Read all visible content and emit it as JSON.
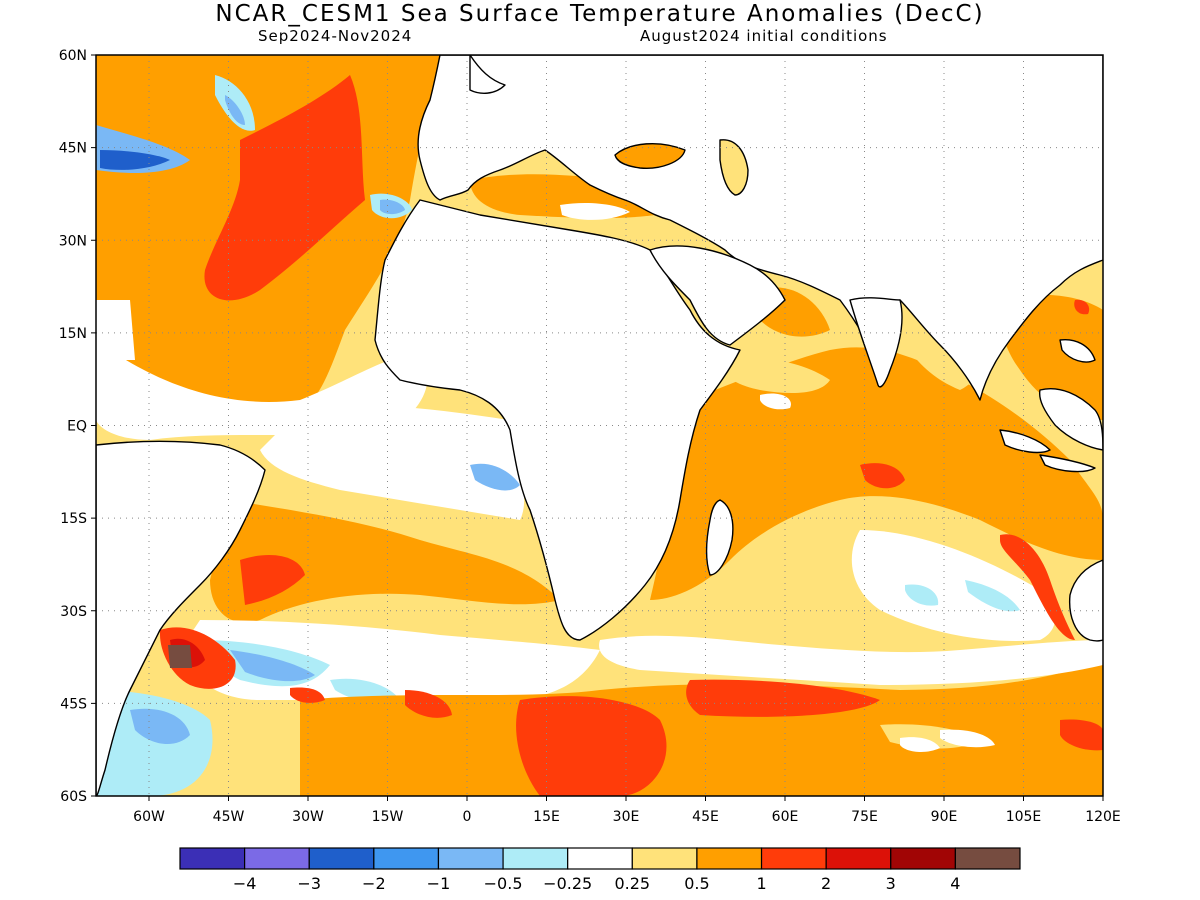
{
  "title": "NCAR_CESM1 Sea Surface Temperature Anomalies (DecC)",
  "subtitle_left": "Sep2024-Nov2024",
  "subtitle_right": "August2024 initial conditions",
  "map": {
    "lon_range": [
      -70,
      120
    ],
    "lat_range": [
      -60,
      60
    ],
    "lat_ticks": [
      {
        "value": 60,
        "label": "60N"
      },
      {
        "value": 45,
        "label": "45N"
      },
      {
        "value": 30,
        "label": "30N"
      },
      {
        "value": 15,
        "label": "15N"
      },
      {
        "value": 0,
        "label": "EQ"
      },
      {
        "value": -15,
        "label": "15S"
      },
      {
        "value": -30,
        "label": "30S"
      },
      {
        "value": -45,
        "label": "45S"
      },
      {
        "value": -60,
        "label": "60S"
      }
    ],
    "lon_ticks": [
      {
        "value": -60,
        "label": "60W"
      },
      {
        "value": -45,
        "label": "45W"
      },
      {
        "value": -30,
        "label": "30W"
      },
      {
        "value": -15,
        "label": "15W"
      },
      {
        "value": 0,
        "label": "0"
      },
      {
        "value": 15,
        "label": "15E"
      },
      {
        "value": 30,
        "label": "30E"
      },
      {
        "value": 45,
        "label": "45E"
      },
      {
        "value": 60,
        "label": "60E"
      },
      {
        "value": 75,
        "label": "75E"
      },
      {
        "value": 90,
        "label": "90E"
      },
      {
        "value": 105,
        "label": "105E"
      },
      {
        "value": 120,
        "label": "120E"
      }
    ],
    "grid": "dotted"
  },
  "colorbar": {
    "colors": [
      "#3b2fb6",
      "#7b6ae6",
      "#1f5fcb",
      "#3f97f0",
      "#7ab8f5",
      "#aeecf7",
      "#ffffff",
      "#ffe27a",
      "#ff9f00",
      "#ff3c0a",
      "#dc1108",
      "#a10505",
      "#764c40"
    ],
    "labels": [
      "-4",
      "-3",
      "-2",
      "-1",
      "-0.5",
      "-0.25",
      "0.25",
      "0.5",
      "1",
      "2",
      "3",
      "4"
    ]
  }
}
